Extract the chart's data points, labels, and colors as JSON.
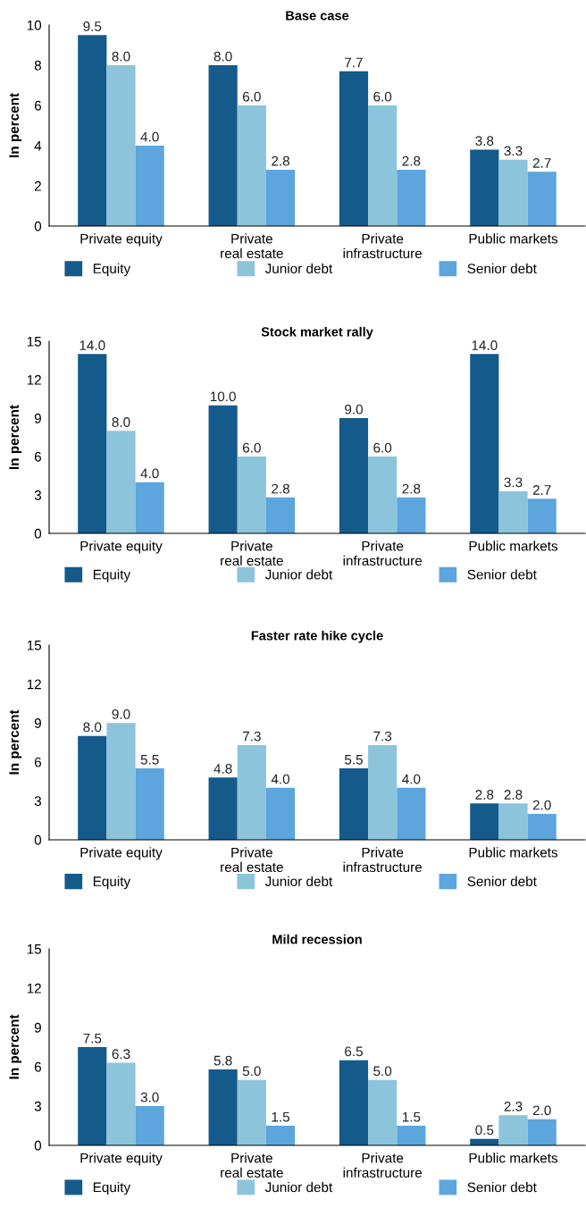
{
  "chart_data": [
    {
      "type": "bar",
      "title": "Base case",
      "ylabel": "In percent",
      "categories": [
        "Private equity",
        "Private\nreal estate",
        "Private\ninfrastructure",
        "Public markets"
      ],
      "ylim": [
        0,
        10
      ],
      "yticks": [
        0,
        2,
        4,
        6,
        8,
        10
      ],
      "legend": "bottom",
      "series": [
        {
          "name": "Equity",
          "color": "#145a8a",
          "values": [
            9.5,
            8,
            7.7,
            3.8
          ],
          "value_labels": [
            "9.5",
            "8.0",
            "7.7",
            "3.8"
          ]
        },
        {
          "name": "Junior debt",
          "color": "#8cc4dc",
          "values": [
            8,
            6,
            6,
            3.3
          ],
          "value_labels": [
            "8.0",
            "6.0",
            "6.0",
            "3.3"
          ]
        },
        {
          "name": "Senior debt",
          "color": "#5ca5dd",
          "values": [
            4,
            2.8,
            2.8,
            2.7
          ],
          "value_labels": [
            "4.0",
            "2.8",
            "2.8",
            "2.7"
          ]
        }
      ]
    },
    {
      "type": "bar",
      "title": "Stock market rally",
      "ylabel": "In percent",
      "categories": [
        "Private equity",
        "Private\nreal estate",
        "Private\ninfrastructure",
        "Public markets"
      ],
      "ylim": [
        0,
        15
      ],
      "yticks": [
        0,
        3,
        6,
        9,
        12,
        15
      ],
      "legend": "bottom",
      "series": [
        {
          "name": "Equity",
          "color": "#145a8a",
          "values": [
            14,
            10,
            9,
            14
          ],
          "value_labels": [
            "14.0",
            "10.0",
            "9.0",
            "14.0"
          ]
        },
        {
          "name": "Junior debt",
          "color": "#8cc4dc",
          "values": [
            8,
            6,
            6,
            3.3
          ],
          "value_labels": [
            "8.0",
            "6.0",
            "6.0",
            "3.3"
          ]
        },
        {
          "name": "Senior debt",
          "color": "#5ca5dd",
          "values": [
            4,
            2.8,
            2.8,
            2.7
          ],
          "value_labels": [
            "4.0",
            "2.8",
            "2.8",
            "2.7"
          ]
        }
      ]
    },
    {
      "type": "bar",
      "title": "Faster rate hike cycle",
      "ylabel": "In percent",
      "categories": [
        "Private equity",
        "Private\nreal estate",
        "Private\ninfrastructure",
        "Public markets"
      ],
      "ylim": [
        0,
        15
      ],
      "yticks": [
        0,
        3,
        6,
        9,
        12,
        15
      ],
      "legend": "bottom",
      "series": [
        {
          "name": "Equity",
          "color": "#145a8a",
          "values": [
            8,
            4.8,
            5.5,
            2.8
          ],
          "value_labels": [
            "8.0",
            "4.8",
            "5.5",
            "2.8"
          ]
        },
        {
          "name": "Junior debt",
          "color": "#8cc4dc",
          "values": [
            9,
            7.3,
            7.3,
            2.8
          ],
          "value_labels": [
            "9.0",
            "7.3",
            "7.3",
            "2.8"
          ]
        },
        {
          "name": "Senior debt",
          "color": "#5ca5dd",
          "values": [
            5.5,
            4,
            4,
            2
          ],
          "value_labels": [
            "5.5",
            "4.0",
            "4.0",
            "2.0"
          ]
        }
      ]
    },
    {
      "type": "bar",
      "title": "Mild recession",
      "ylabel": "In percent",
      "categories": [
        "Private equity",
        "Private\nreal estate",
        "Private\ninfrastructure",
        "Public markets"
      ],
      "ylim": [
        0,
        15
      ],
      "yticks": [
        0,
        3,
        6,
        9,
        12,
        15
      ],
      "legend": "bottom",
      "series": [
        {
          "name": "Equity",
          "color": "#145a8a",
          "values": [
            7.5,
            5.8,
            6.5,
            0.5
          ],
          "value_labels": [
            "7.5",
            "5.8",
            "6.5",
            "0.5"
          ]
        },
        {
          "name": "Junior debt",
          "color": "#8cc4dc",
          "values": [
            6.3,
            5,
            5,
            2.3
          ],
          "value_labels": [
            "6.3",
            "5.0",
            "5.0",
            "2.3"
          ]
        },
        {
          "name": "Senior debt",
          "color": "#5ca5dd",
          "values": [
            3,
            1.5,
            1.5,
            2
          ],
          "value_labels": [
            "3.0",
            "1.5",
            "1.5",
            "2.0"
          ]
        }
      ]
    }
  ]
}
